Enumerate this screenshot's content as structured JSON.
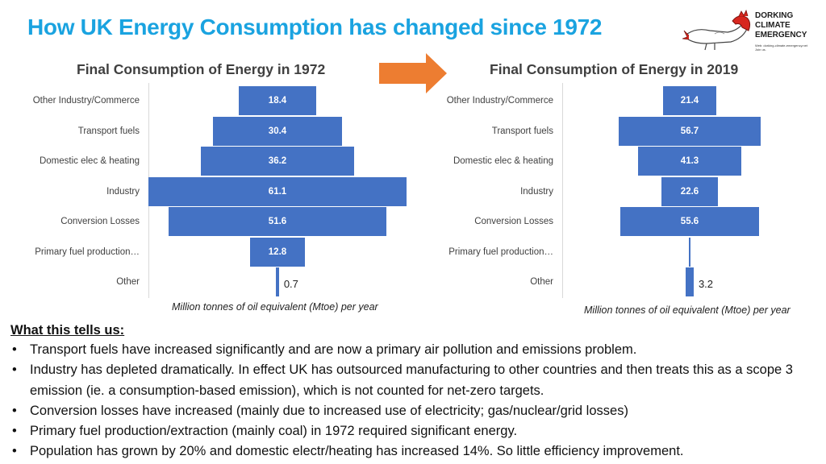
{
  "page": {
    "title": "How UK Energy Consumption has changed since 1972",
    "title_color": "#1aa3e0"
  },
  "logo": {
    "line1": "DORKING",
    "line2": "CLIMATE",
    "line3": "EMERGENCY",
    "web": "Web: dorking-climate-emergency.net",
    "join": "Join us."
  },
  "arrow": {
    "color": "#ed7d31"
  },
  "chart_data": [
    {
      "type": "bar",
      "orientation": "horizontal-centered",
      "title": "Final Consumption of Energy in 1972",
      "categories": [
        "Other Industry/Commerce",
        "Transport fuels",
        "Domestic elec & heating",
        "Industry",
        "Conversion Losses",
        "Primary fuel production…",
        "Other"
      ],
      "values": [
        18.4,
        30.4,
        36.2,
        61.1,
        51.6,
        12.8,
        0.7
      ],
      "value_labels": [
        "18.4",
        "30.4",
        "36.2",
        "61.1",
        "51.6",
        "12.8",
        "0.7"
      ],
      "xlabel": "Million tonnes of oil equivalent (Mtoe) per year",
      "bar_color": "#4472c4",
      "legend": "none",
      "grid": false
    },
    {
      "type": "bar",
      "orientation": "horizontal-centered",
      "title": "Final Consumption of Energy in 2019",
      "categories": [
        "Other Industry/Commerce",
        "Transport fuels",
        "Domestic elec & heating",
        "Industry",
        "Conversion Losses",
        "Primary fuel production…",
        "Other"
      ],
      "values": [
        21.4,
        56.7,
        41.3,
        22.6,
        55.6,
        0.3,
        3.2
      ],
      "value_labels": [
        "21.4",
        "56.7",
        "41.3",
        "22.6",
        "55.6",
        "",
        "3.2"
      ],
      "xlabel": "Million tonnes of oil equivalent (Mtoe) per year",
      "bar_color": "#4472c4",
      "legend": "none",
      "grid": false
    }
  ],
  "notes": {
    "heading": "What this tells us:",
    "bullets": [
      "Transport fuels have increased significantly and are now a primary air pollution and emissions problem.",
      "Industry has depleted dramatically.  In effect UK has outsourced manufacturing to other countries and then treats this as a scope 3 emission (ie. a consumption-based emission), which is not counted for net-zero targets.",
      "Conversion losses have increased (mainly due to increased use of electricity; gas/nuclear/grid losses)",
      "Primary fuel production/extraction  (mainly coal) in 1972 required significant energy.",
      "Population has grown by 20% and domestic electr/heating has increased 14%.  So little efficiency improvement."
    ]
  }
}
